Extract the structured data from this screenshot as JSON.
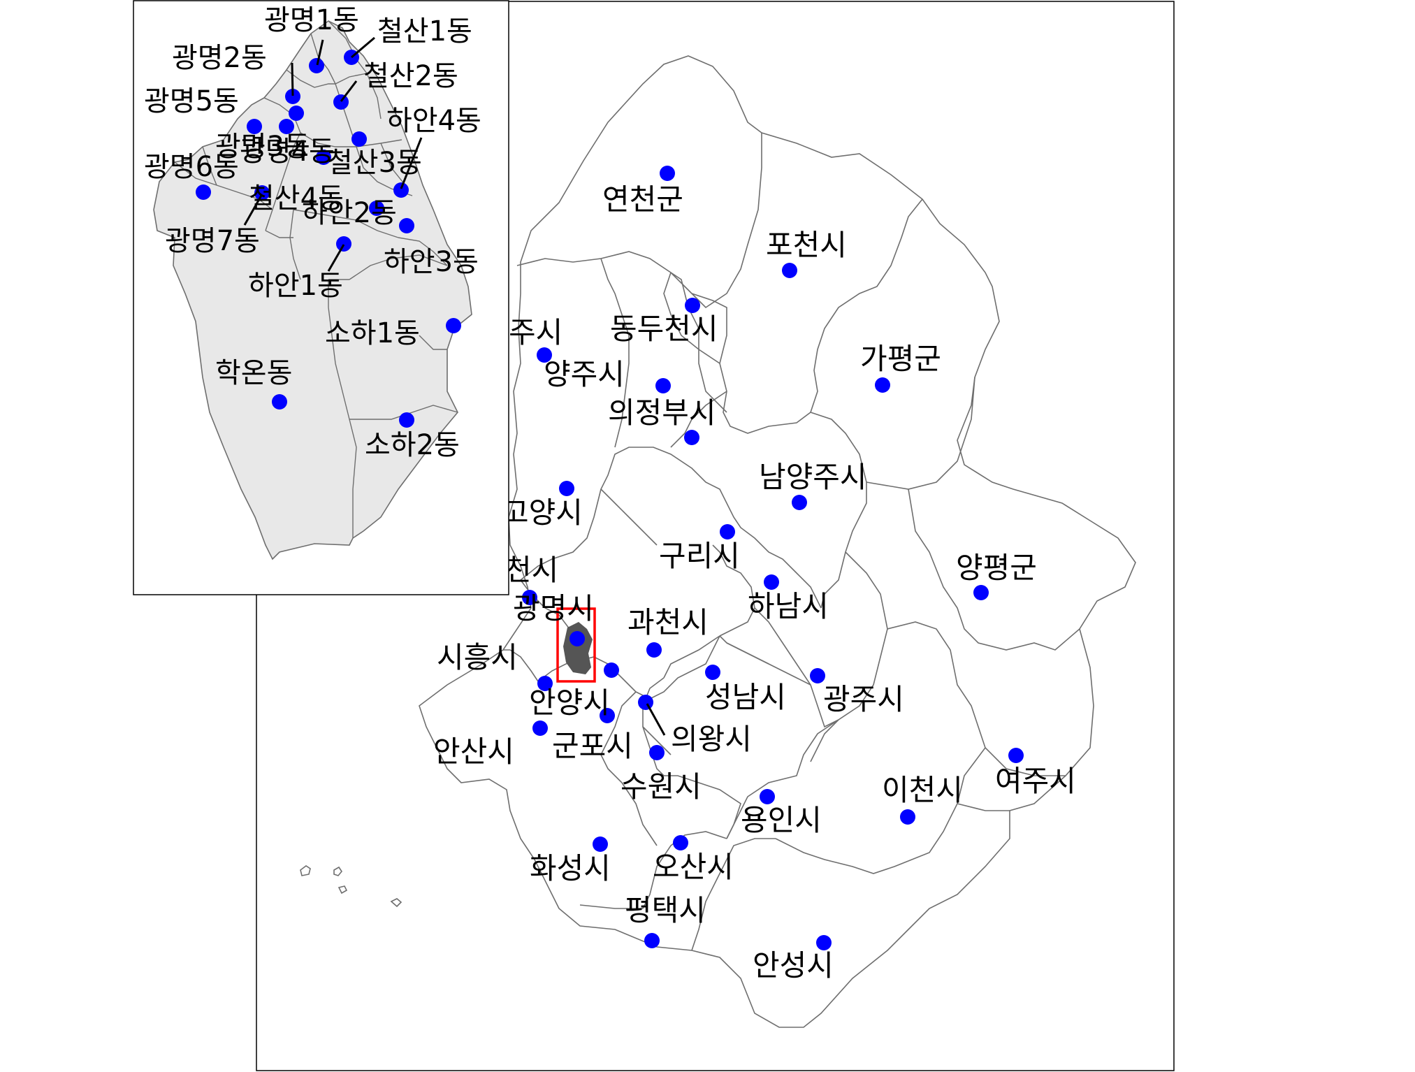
{
  "main_map": {
    "regions": [
      {
        "id": "yeoncheon",
        "name": "연천군"
      },
      {
        "id": "pocheon",
        "name": "포천시"
      },
      {
        "id": "dongducheon",
        "name": "동두천시"
      },
      {
        "id": "paju",
        "name": "주시"
      },
      {
        "id": "yangju",
        "name": "양주시"
      },
      {
        "id": "uijeongbu",
        "name": "의정부시"
      },
      {
        "id": "gapyeong",
        "name": "가평군"
      },
      {
        "id": "namyangju",
        "name": "남양주시"
      },
      {
        "id": "goyang",
        "name": "고양시"
      },
      {
        "id": "guri",
        "name": "구리시"
      },
      {
        "id": "yangpyeong",
        "name": "양평군"
      },
      {
        "id": "bucheon",
        "name": "천시"
      },
      {
        "id": "hanam",
        "name": "하남시"
      },
      {
        "id": "gwangmyeong",
        "name": "광명시"
      },
      {
        "id": "gwacheon",
        "name": "과천시"
      },
      {
        "id": "siheung",
        "name": "시흥시"
      },
      {
        "id": "seongnam",
        "name": "성남시"
      },
      {
        "id": "gwangju",
        "name": "광주시"
      },
      {
        "id": "anyang",
        "name": "안양시"
      },
      {
        "id": "uiwang",
        "name": "의왕시"
      },
      {
        "id": "ansan",
        "name": "안산시"
      },
      {
        "id": "gunpo",
        "name": "군포시"
      },
      {
        "id": "suwon",
        "name": "수원시"
      },
      {
        "id": "yongin",
        "name": "용인시"
      },
      {
        "id": "icheon",
        "name": "이천시"
      },
      {
        "id": "yeoju",
        "name": "여주시"
      },
      {
        "id": "hwaseong",
        "name": "화성시"
      },
      {
        "id": "osan",
        "name": "오산시"
      },
      {
        "id": "pyeongtaek",
        "name": "평택시"
      },
      {
        "id": "anseong",
        "name": "안성시"
      }
    ],
    "extra_points": [
      "seoul-center",
      "seoul-south"
    ],
    "highlight": {
      "region": "광명시",
      "fill_color": "#555555",
      "box_color": "#ff0000"
    }
  },
  "inset_map": {
    "title_region": "광명시",
    "dongs": [
      {
        "id": "gm1",
        "name": "광명1동"
      },
      {
        "id": "cs1",
        "name": "철산1동"
      },
      {
        "id": "gm2",
        "name": "광명2동"
      },
      {
        "id": "cs2",
        "name": "철산2동"
      },
      {
        "id": "gm5",
        "name": "광명5동"
      },
      {
        "id": "ha4",
        "name": "하안4동"
      },
      {
        "id": "gm3",
        "name": "광명3동"
      },
      {
        "id": "gm4",
        "name": "광명4동"
      },
      {
        "id": "cs3",
        "name": "철산3동"
      },
      {
        "id": "gm6",
        "name": "광명6동"
      },
      {
        "id": "cs4",
        "name": "철산4동"
      },
      {
        "id": "ha2",
        "name": "하안2동"
      },
      {
        "id": "gm7",
        "name": "광명7동"
      },
      {
        "id": "ha3",
        "name": "하안3동"
      },
      {
        "id": "ha1",
        "name": "하안1동"
      },
      {
        "id": "so1",
        "name": "소하1동"
      },
      {
        "id": "hakon",
        "name": "학온동"
      },
      {
        "id": "so2",
        "name": "소하2동"
      }
    ],
    "fill_color": "#e8e8e8"
  },
  "colors": {
    "point": "#0000ff",
    "boundary": "#6e6e6e",
    "highlight_box": "#ff0000"
  }
}
